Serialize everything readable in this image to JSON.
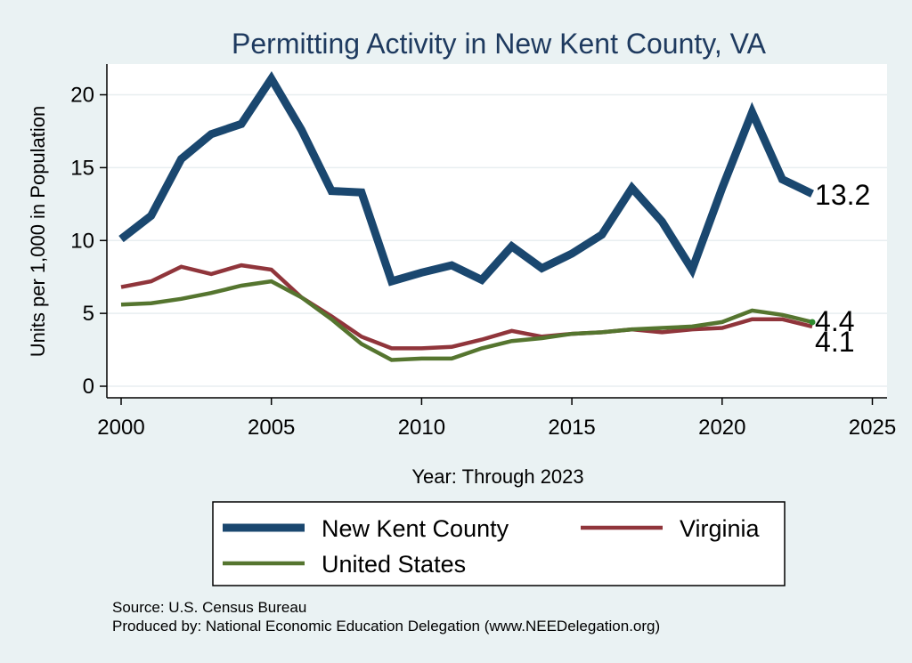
{
  "chart_data": {
    "type": "line",
    "title": "Permitting Activity in New Kent County, VA",
    "xlabel": "Year: Through 2023",
    "ylabel": "Units per 1,000 in Population",
    "xlim": [
      2000,
      2025
    ],
    "ylim": [
      0,
      22
    ],
    "x_ticks": [
      "2000",
      "2005",
      "2010",
      "2015",
      "2020",
      "2025"
    ],
    "y_ticks": [
      "0",
      "5",
      "10",
      "15",
      "20"
    ],
    "grid": "horizontal",
    "x": [
      2000,
      2001,
      2002,
      2003,
      2004,
      2005,
      2006,
      2007,
      2008,
      2009,
      2010,
      2011,
      2012,
      2013,
      2014,
      2015,
      2016,
      2017,
      2018,
      2019,
      2020,
      2021,
      2022,
      2023
    ],
    "series": [
      {
        "name": "New Kent County",
        "color": "#1a476f",
        "values": [
          10.1,
          11.7,
          15.6,
          17.3,
          18.0,
          21.1,
          17.6,
          13.4,
          13.3,
          7.2,
          7.8,
          8.3,
          7.3,
          9.6,
          8.1,
          9.1,
          10.4,
          13.6,
          11.3,
          8.0,
          13.6,
          18.8,
          14.2,
          13.2
        ],
        "end_label": "13.2"
      },
      {
        "name": "Virginia",
        "color": "#90353b",
        "values": [
          6.8,
          7.2,
          8.2,
          7.7,
          8.3,
          8.0,
          6.1,
          4.8,
          3.4,
          2.6,
          2.6,
          2.7,
          3.2,
          3.8,
          3.4,
          3.6,
          3.7,
          3.9,
          3.7,
          3.9,
          4.0,
          4.6,
          4.6,
          4.1
        ],
        "end_label": "4.1"
      },
      {
        "name": "United States",
        "color": "#55752f",
        "values": [
          5.6,
          5.7,
          6.0,
          6.4,
          6.9,
          7.2,
          6.1,
          4.6,
          2.9,
          1.8,
          1.9,
          1.9,
          2.6,
          3.1,
          3.3,
          3.6,
          3.7,
          3.9,
          4.0,
          4.1,
          4.4,
          5.2,
          4.9,
          4.4
        ],
        "end_label": "4.4"
      }
    ],
    "legend": {
      "placement": "bottom",
      "entries": [
        "New Kent County",
        "Virginia",
        "United States"
      ]
    },
    "notes": [
      "Source: U.S. Census Bureau",
      "Produced by: National Economic Education Delegation (www.NEEDelegation.org)"
    ]
  }
}
